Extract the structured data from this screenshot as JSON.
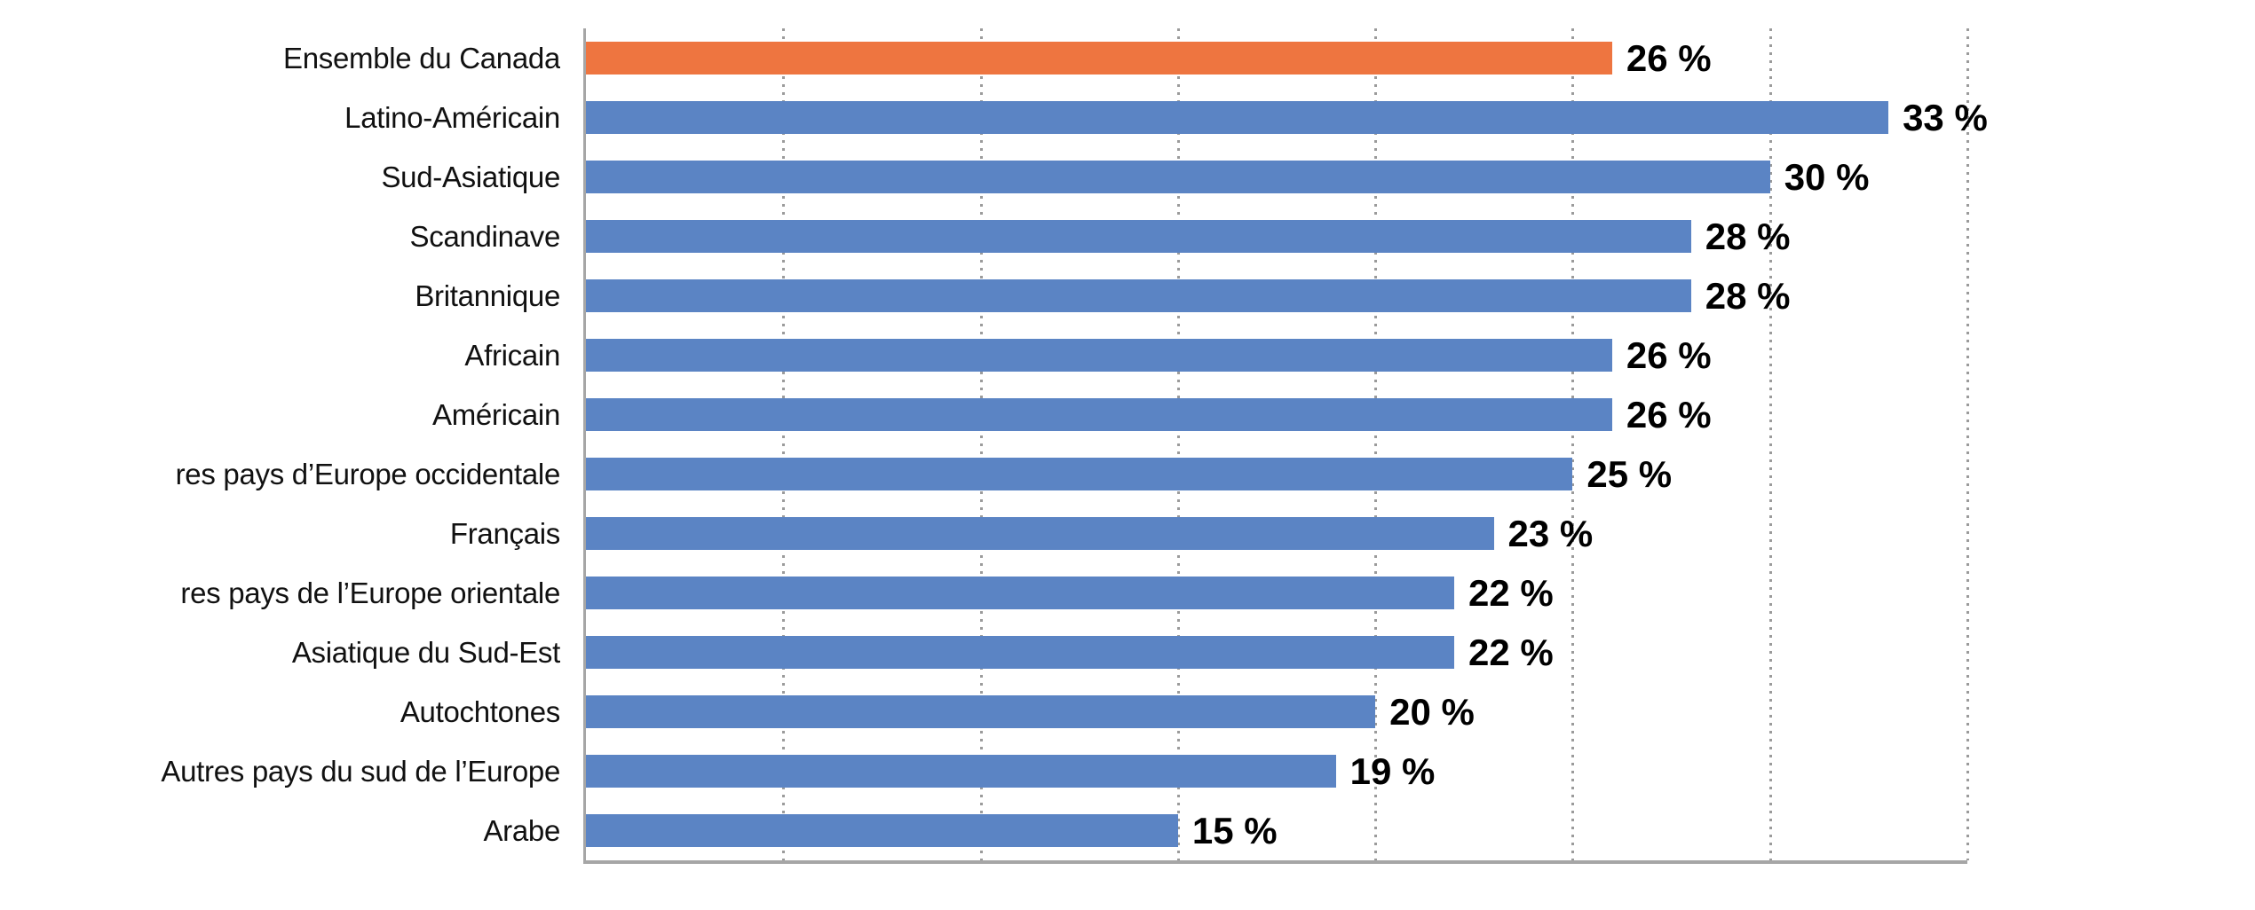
{
  "chart_data": {
    "type": "bar",
    "orientation": "horizontal",
    "title": "",
    "xlabel": "",
    "ylabel": "",
    "categories": [
      "Ensemble du Canada",
      "Latino-Américain",
      "Sud-Asiatique",
      "Scandinave",
      "Britannique",
      "Africain",
      "Américain",
      "res pays d’Europe occidentale",
      "Français",
      "res pays de l’Europe orientale",
      "Asiatique du Sud-Est",
      "Autochtones",
      "Autres pays du sud de l’Europe",
      "Arabe"
    ],
    "values": [
      26,
      33,
      30,
      28,
      28,
      26,
      26,
      25,
      23,
      22,
      22,
      20,
      19,
      15
    ],
    "value_labels": [
      "26 %",
      "33 %",
      "30 %",
      "28 %",
      "28 %",
      "26 %",
      "26 %",
      "25 %",
      "23 %",
      "22 %",
      "22 %",
      "20 %",
      "19 %",
      "15 %"
    ],
    "xlim": [
      0,
      35
    ],
    "gridlines_x": [
      5,
      10,
      15,
      20,
      25,
      30,
      35
    ],
    "grid_style": "vertical-dotted",
    "legend": "none",
    "highlight_index": 0,
    "colors": {
      "highlight_bar": "#EE7540",
      "bar": "#5B84C4",
      "axis": "#A6A6A6",
      "gridline": "#9B9B9B",
      "label_text": "#111111",
      "value_text": "#000000",
      "background": "#FFFFFF"
    }
  }
}
